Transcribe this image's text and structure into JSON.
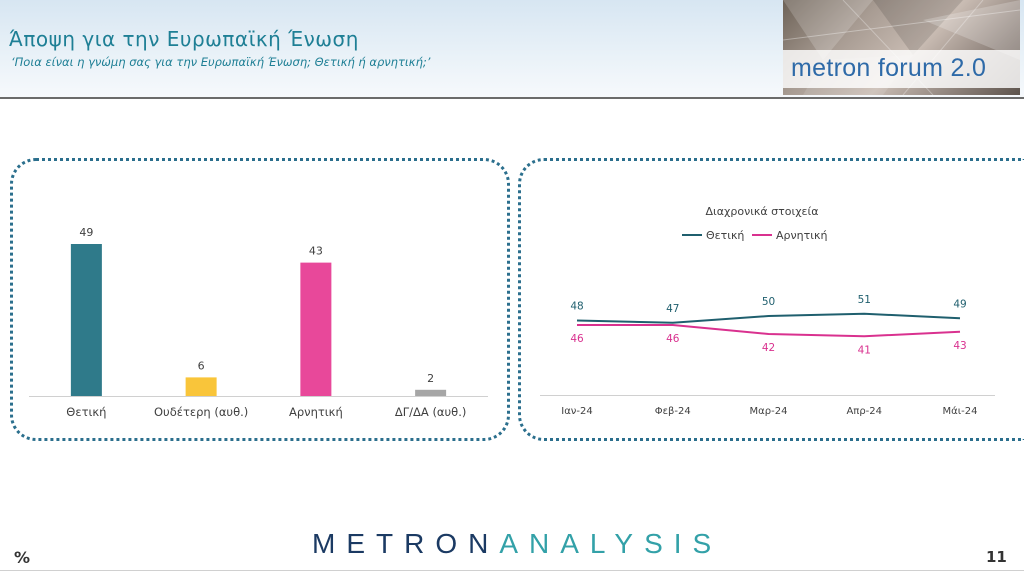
{
  "header": {
    "title": "Άποψη για την Ευρωπαϊκή Ένωση",
    "subtitle": "‘Ποια είναι η γνώμη σας για την Ευρωπαϊκή Ένωση; Θετική ή αρνητική;’",
    "logo_text": "metron forum 2.0"
  },
  "footer": {
    "brand_part1": "METRON",
    "brand_part2": "ANALYSIS",
    "unit": "%",
    "page_number": "11"
  },
  "colors": {
    "teal": "#2f7a8a",
    "yellow": "#f9c53a",
    "pink": "#e8489a",
    "gray": "#a6a6a6",
    "line_positive": "#1f5f6e",
    "line_negative": "#d9318f"
  },
  "chart_data": [
    {
      "type": "bar",
      "title": "",
      "categories": [
        "Θετική",
        "Ουδέτερη (αυθ.)",
        "Αρνητική",
        "ΔΓ/ΔΑ (αυθ.)"
      ],
      "values": [
        49,
        6,
        43,
        2
      ],
      "bar_colors": [
        "#2f7a8a",
        "#f9c53a",
        "#e8489a",
        "#a6a6a6"
      ],
      "ylim": [
        0,
        50
      ],
      "data_labels": true,
      "grid": false
    },
    {
      "type": "line",
      "title": "Διαχρονικά στοιχεία",
      "categories": [
        "Ιαν-24",
        "Φεβ-24",
        "Μαρ-24",
        "Απρ-24",
        "Μάι-24"
      ],
      "series": [
        {
          "name": "Θετική",
          "values": [
            48,
            47,
            50,
            51,
            49
          ],
          "color": "#1f5f6e"
        },
        {
          "name": "Αρνητική",
          "values": [
            46,
            46,
            42,
            41,
            43
          ],
          "color": "#d9318f"
        }
      ],
      "ylim": [
        0,
        100
      ],
      "legend": "top",
      "data_labels": true,
      "grid": false
    }
  ]
}
